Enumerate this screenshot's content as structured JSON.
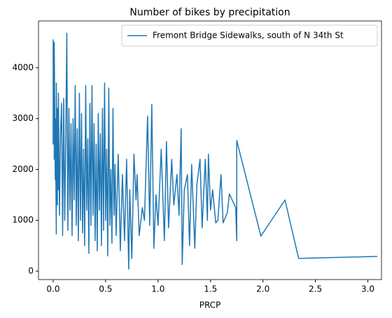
{
  "chart_data": {
    "type": "line",
    "title": "Number of bikes by precipitation",
    "x_label": "PRCP",
    "series": [
      {
        "name": "Fremont Bridge Sidewalks, south of N 34th St",
        "color": "#1f77b4",
        "x": [
          0,
          0,
          0,
          0,
          0.01,
          0.01,
          0.01,
          0.02,
          0.02,
          0.03,
          0.03,
          0.04,
          0.04,
          0.05,
          0.05,
          0.06,
          0.07,
          0.08,
          0.09,
          0.1,
          0.11,
          0.12,
          0.13,
          0.14,
          0.15,
          0.16,
          0.17,
          0.18,
          0.19,
          0.2,
          0.21,
          0.22,
          0.23,
          0.24,
          0.25,
          0.26,
          0.27,
          0.28,
          0.29,
          0.3,
          0.31,
          0.32,
          0.33,
          0.34,
          0.35,
          0.36,
          0.37,
          0.38,
          0.39,
          0.4,
          0.41,
          0.42,
          0.43,
          0.44,
          0.45,
          0.46,
          0.47,
          0.48,
          0.49,
          0.5,
          0.51,
          0.52,
          0.53,
          0.54,
          0.55,
          0.56,
          0.57,
          0.58,
          0.59,
          0.6,
          0.62,
          0.64,
          0.66,
          0.68,
          0.7,
          0.72,
          0.73,
          0.75,
          0.77,
          0.79,
          0.8,
          0.82,
          0.85,
          0.87,
          0.9,
          0.92,
          0.94,
          0.96,
          0.98,
          1.0,
          1.03,
          1.06,
          1.08,
          1.1,
          1.13,
          1.15,
          1.18,
          1.2,
          1.22,
          1.23,
          1.25,
          1.28,
          1.3,
          1.32,
          1.35,
          1.37,
          1.4,
          1.42,
          1.45,
          1.47,
          1.48,
          1.5,
          1.52,
          1.55,
          1.57,
          1.6,
          1.62,
          1.66,
          1.68,
          1.74,
          1.75,
          1.75,
          1.98,
          2.21,
          2.34,
          3.09
        ],
        "values": [
          3100,
          2600,
          4550,
          2500,
          3400,
          2200,
          4500,
          1800,
          3000,
          730,
          3700,
          1300,
          3200,
          1600,
          3500,
          1100,
          2700,
          3300,
          700,
          3400,
          1000,
          2600,
          4680,
          800,
          3200,
          1200,
          2900,
          700,
          3000,
          1400,
          3650,
          900,
          2800,
          600,
          3500,
          1000,
          3100,
          750,
          2400,
          500,
          3650,
          1200,
          2600,
          350,
          3300,
          900,
          3650,
          1100,
          2900,
          600,
          2500,
          400,
          3100,
          1200,
          2700,
          500,
          3200,
          800,
          3700,
          1000,
          2400,
          300,
          3600,
          900,
          2000,
          550,
          3200,
          1100,
          2100,
          700,
          2300,
          400,
          1900,
          600,
          2200,
          40,
          1600,
          250,
          2300,
          1400,
          1900,
          700,
          1250,
          1000,
          3050,
          900,
          3280,
          450,
          1500,
          900,
          2400,
          600,
          2550,
          850,
          2200,
          1300,
          1900,
          1100,
          2800,
          130,
          1600,
          1900,
          500,
          2100,
          450,
          1700,
          2200,
          850,
          2200,
          1000,
          2300,
          1200,
          1600,
          950,
          1000,
          1900,
          950,
          1150,
          1520,
          1250,
          600,
          2570,
          690,
          1400,
          250,
          290
        ]
      }
    ],
    "xlim": [
      -0.14,
      3.13
    ],
    "ylim": [
      -165,
      4920
    ],
    "xticks": [
      {
        "value": 0,
        "label": "0.0"
      },
      0.5,
      {
        "value": 1,
        "label": "1.0"
      },
      1.5,
      {
        "value": 2,
        "label": "2.0"
      },
      2.5,
      {
        "value": 3,
        "label": "3.0"
      }
    ],
    "yticks": [
      0,
      1000,
      2000,
      3000,
      4000
    ],
    "legend": "upper right"
  }
}
